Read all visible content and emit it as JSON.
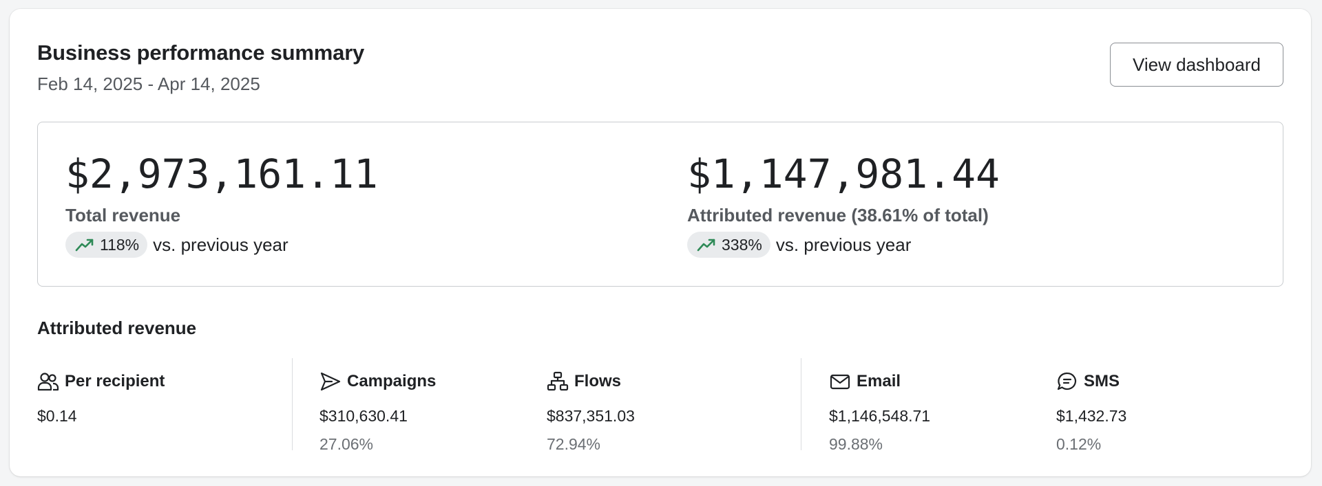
{
  "header": {
    "title": "Business performance summary",
    "date_range": "Feb 14, 2025 - Apr 14, 2025",
    "view_dashboard_label": "View dashboard"
  },
  "summary": {
    "total": {
      "value": "$2,973,161.11",
      "label": "Total revenue",
      "trend": "118%",
      "trend_direction": "up",
      "comparison": "vs. previous year"
    },
    "attributed": {
      "value": "$1,147,981.44",
      "label": "Attributed revenue (38.61% of total)",
      "trend": "338%",
      "trend_direction": "up",
      "comparison": "vs. previous year"
    }
  },
  "attributed_revenue": {
    "title": "Attributed revenue",
    "columns": [
      {
        "label": "Per recipient",
        "icon": "users-icon",
        "value": "$0.14",
        "percent": ""
      },
      {
        "label": "Campaigns",
        "icon": "send-icon",
        "value": "$310,630.41",
        "percent": "27.06%"
      },
      {
        "label": "Flows",
        "icon": "flow-icon",
        "value": "$837,351.03",
        "percent": "72.94%"
      },
      {
        "label": "Email",
        "icon": "mail-icon",
        "value": "$1,146,548.71",
        "percent": "99.88%"
      },
      {
        "label": "SMS",
        "icon": "chat-icon",
        "value": "$1,432.73",
        "percent": "0.12%"
      }
    ]
  },
  "colors": {
    "trend_up": "#2e8a57",
    "pill_bg": "#e9ebed",
    "border": "#c9cccf"
  }
}
